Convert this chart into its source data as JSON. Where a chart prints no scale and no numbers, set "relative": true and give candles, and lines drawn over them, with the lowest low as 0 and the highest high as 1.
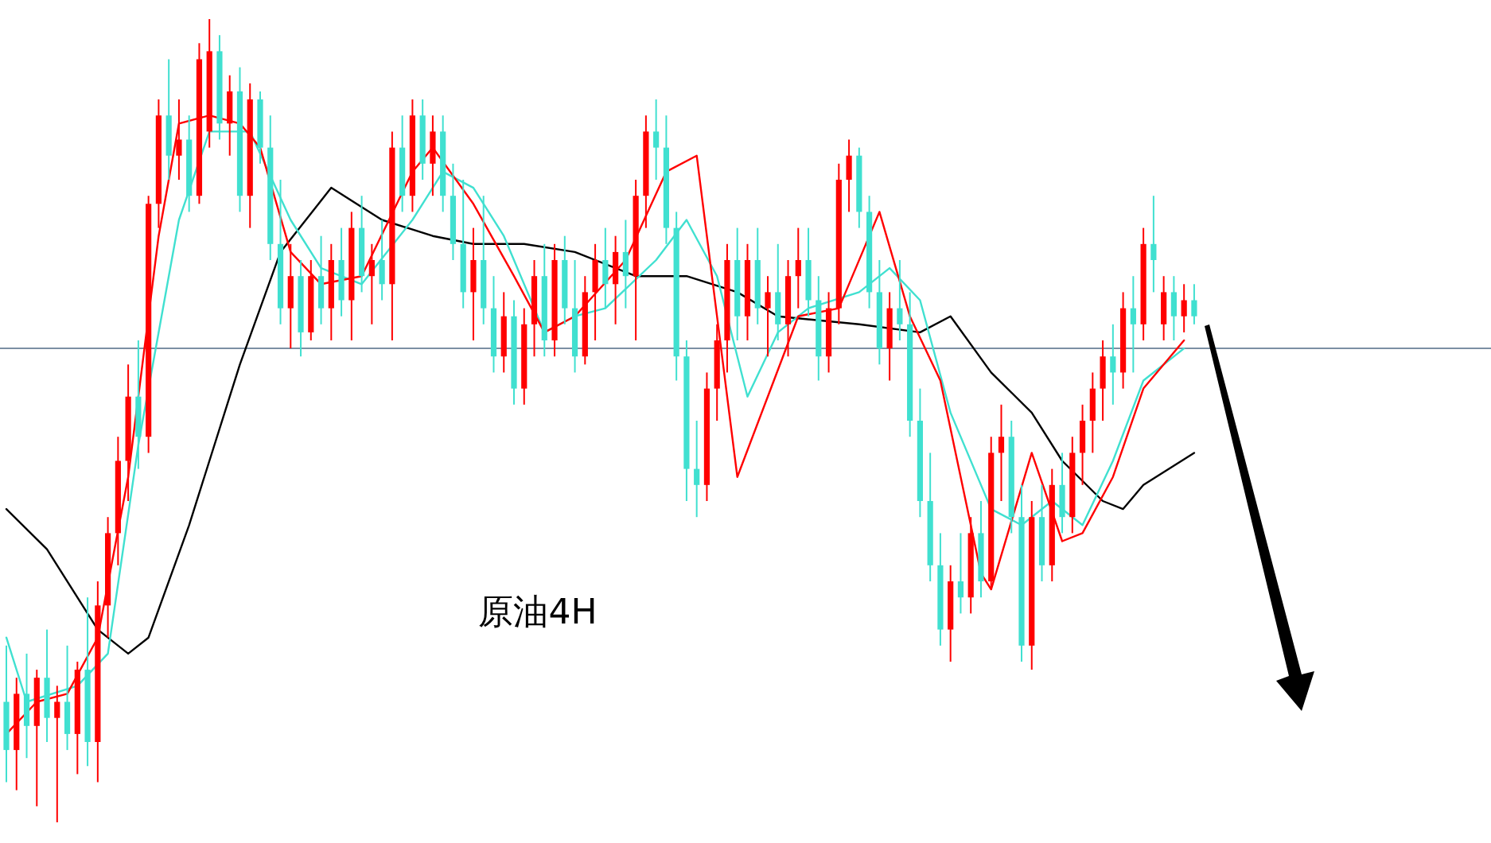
{
  "chart_data": {
    "type": "candlestick",
    "title": "原油4H",
    "relative": true,
    "legend": false,
    "grid": false,
    "categories": [
      null,
      null,
      null,
      null,
      null,
      null,
      null,
      null,
      null,
      null,
      null,
      null,
      null,
      null,
      null,
      null,
      null,
      null,
      null,
      null,
      null,
      null,
      null,
      null,
      null,
      null,
      null,
      null,
      null,
      null,
      null,
      null,
      null,
      null,
      null,
      null,
      null,
      null,
      null,
      null,
      null,
      null,
      null,
      null,
      null,
      null,
      null,
      null,
      null,
      null,
      null,
      null,
      null,
      null,
      null,
      null,
      null,
      null,
      null,
      null,
      null,
      null,
      null,
      null,
      null,
      null,
      null,
      null,
      null,
      null,
      null,
      null,
      null,
      null,
      null,
      null,
      null,
      null,
      null,
      null,
      null,
      null,
      null,
      null,
      null,
      null,
      null,
      null,
      null,
      null,
      null,
      null,
      null,
      null,
      null,
      null,
      null,
      null,
      null,
      null,
      null,
      null,
      null,
      null,
      null,
      null,
      null,
      null,
      null,
      null,
      null,
      null,
      null,
      null,
      null,
      null,
      null,
      null
    ],
    "ohlc": [
      [
        0.15,
        0.22,
        0.05,
        0.09
      ],
      [
        0.09,
        0.18,
        0.04,
        0.16
      ],
      [
        0.16,
        0.21,
        0.08,
        0.12
      ],
      [
        0.12,
        0.19,
        0.02,
        0.18
      ],
      [
        0.18,
        0.24,
        0.1,
        0.13
      ],
      [
        0.13,
        0.17,
        0.0,
        0.15
      ],
      [
        0.15,
        0.22,
        0.09,
        0.11
      ],
      [
        0.11,
        0.2,
        0.06,
        0.19
      ],
      [
        0.19,
        0.28,
        0.07,
        0.1
      ],
      [
        0.1,
        0.3,
        0.05,
        0.27
      ],
      [
        0.27,
        0.38,
        0.23,
        0.36
      ],
      [
        0.36,
        0.48,
        0.32,
        0.45
      ],
      [
        0.45,
        0.57,
        0.4,
        0.53
      ],
      [
        0.53,
        0.6,
        0.44,
        0.48
      ],
      [
        0.48,
        0.78,
        0.46,
        0.77
      ],
      [
        0.77,
        0.9,
        0.74,
        0.88
      ],
      [
        0.88,
        0.95,
        0.8,
        0.83
      ],
      [
        0.83,
        0.9,
        0.8,
        0.85
      ],
      [
        0.85,
        0.88,
        0.76,
        0.78
      ],
      [
        0.78,
        0.97,
        0.77,
        0.95
      ],
      [
        0.86,
        1.0,
        0.84,
        0.96
      ],
      [
        0.96,
        0.98,
        0.85,
        0.87
      ],
      [
        0.87,
        0.93,
        0.83,
        0.91
      ],
      [
        0.91,
        0.94,
        0.76,
        0.78
      ],
      [
        0.78,
        0.92,
        0.74,
        0.9
      ],
      [
        0.9,
        0.91,
        0.82,
        0.84
      ],
      [
        0.84,
        0.88,
        0.7,
        0.72
      ],
      [
        0.72,
        0.8,
        0.62,
        0.64
      ],
      [
        0.64,
        0.72,
        0.59,
        0.68
      ],
      [
        0.68,
        0.7,
        0.58,
        0.61
      ],
      [
        0.61,
        0.7,
        0.6,
        0.68
      ],
      [
        0.68,
        0.73,
        0.62,
        0.64
      ],
      [
        0.64,
        0.72,
        0.6,
        0.7
      ],
      [
        0.7,
        0.74,
        0.63,
        0.65
      ],
      [
        0.65,
        0.76,
        0.6,
        0.74
      ],
      [
        0.74,
        0.78,
        0.66,
        0.68
      ],
      [
        0.68,
        0.72,
        0.62,
        0.7
      ],
      [
        0.7,
        0.75,
        0.65,
        0.67
      ],
      [
        0.67,
        0.86,
        0.6,
        0.84
      ],
      [
        0.84,
        0.88,
        0.76,
        0.78
      ],
      [
        0.78,
        0.9,
        0.76,
        0.88
      ],
      [
        0.88,
        0.9,
        0.8,
        0.82
      ],
      [
        0.82,
        0.88,
        0.78,
        0.86
      ],
      [
        0.86,
        0.88,
        0.76,
        0.78
      ],
      [
        0.78,
        0.82,
        0.7,
        0.72
      ],
      [
        0.72,
        0.8,
        0.64,
        0.66
      ],
      [
        0.66,
        0.74,
        0.6,
        0.7
      ],
      [
        0.7,
        0.78,
        0.62,
        0.64
      ],
      [
        0.64,
        0.68,
        0.56,
        0.58
      ],
      [
        0.58,
        0.66,
        0.56,
        0.63
      ],
      [
        0.63,
        0.65,
        0.52,
        0.54
      ],
      [
        0.54,
        0.64,
        0.52,
        0.62
      ],
      [
        0.62,
        0.7,
        0.58,
        0.68
      ],
      [
        0.68,
        0.72,
        0.58,
        0.6
      ],
      [
        0.6,
        0.72,
        0.58,
        0.7
      ],
      [
        0.7,
        0.73,
        0.62,
        0.64
      ],
      [
        0.64,
        0.7,
        0.56,
        0.58
      ],
      [
        0.58,
        0.68,
        0.57,
        0.66
      ],
      [
        0.66,
        0.72,
        0.6,
        0.7
      ],
      [
        0.7,
        0.74,
        0.64,
        0.67
      ],
      [
        0.67,
        0.73,
        0.62,
        0.71
      ],
      [
        0.71,
        0.75,
        0.64,
        0.68
      ],
      [
        0.68,
        0.8,
        0.6,
        0.78
      ],
      [
        0.78,
        0.88,
        0.74,
        0.86
      ],
      [
        0.86,
        0.9,
        0.8,
        0.84
      ],
      [
        0.84,
        0.88,
        0.72,
        0.74
      ],
      [
        0.74,
        0.76,
        0.55,
        0.58
      ],
      [
        0.58,
        0.6,
        0.4,
        0.44
      ],
      [
        0.44,
        0.5,
        0.38,
        0.42
      ],
      [
        0.42,
        0.56,
        0.4,
        0.54
      ],
      [
        0.54,
        0.62,
        0.5,
        0.6
      ],
      [
        0.6,
        0.72,
        0.56,
        0.7
      ],
      [
        0.7,
        0.74,
        0.6,
        0.63
      ],
      [
        0.63,
        0.72,
        0.6,
        0.7
      ],
      [
        0.7,
        0.74,
        0.62,
        0.64
      ],
      [
        0.64,
        0.68,
        0.58,
        0.66
      ],
      [
        0.66,
        0.72,
        0.6,
        0.62
      ],
      [
        0.62,
        0.7,
        0.58,
        0.68
      ],
      [
        0.68,
        0.74,
        0.64,
        0.7
      ],
      [
        0.7,
        0.74,
        0.63,
        0.65
      ],
      [
        0.65,
        0.68,
        0.55,
        0.58
      ],
      [
        0.58,
        0.66,
        0.56,
        0.64
      ],
      [
        0.64,
        0.82,
        0.62,
        0.8
      ],
      [
        0.8,
        0.85,
        0.76,
        0.83
      ],
      [
        0.83,
        0.84,
        0.74,
        0.76
      ],
      [
        0.76,
        0.78,
        0.64,
        0.66
      ],
      [
        0.66,
        0.7,
        0.57,
        0.59
      ],
      [
        0.59,
        0.66,
        0.55,
        0.64
      ],
      [
        0.64,
        0.7,
        0.6,
        0.62
      ],
      [
        0.62,
        0.66,
        0.48,
        0.5
      ],
      [
        0.5,
        0.54,
        0.38,
        0.4
      ],
      [
        0.4,
        0.46,
        0.3,
        0.32
      ],
      [
        0.32,
        0.36,
        0.22,
        0.24
      ],
      [
        0.24,
        0.32,
        0.2,
        0.3
      ],
      [
        0.3,
        0.36,
        0.26,
        0.28
      ],
      [
        0.28,
        0.38,
        0.26,
        0.36
      ],
      [
        0.36,
        0.4,
        0.28,
        0.3
      ],
      [
        0.3,
        0.48,
        0.29,
        0.46
      ],
      [
        0.46,
        0.52,
        0.4,
        0.48
      ],
      [
        0.48,
        0.5,
        0.36,
        0.38
      ],
      [
        0.38,
        0.42,
        0.2,
        0.22
      ],
      [
        0.22,
        0.4,
        0.19,
        0.38
      ],
      [
        0.38,
        0.42,
        0.3,
        0.32
      ],
      [
        0.32,
        0.44,
        0.3,
        0.42
      ],
      [
        0.42,
        0.46,
        0.36,
        0.38
      ],
      [
        0.38,
        0.48,
        0.36,
        0.46
      ],
      [
        0.46,
        0.52,
        0.42,
        0.5
      ],
      [
        0.5,
        0.56,
        0.46,
        0.54
      ],
      [
        0.54,
        0.6,
        0.5,
        0.58
      ],
      [
        0.58,
        0.62,
        0.52,
        0.56
      ],
      [
        0.56,
        0.66,
        0.54,
        0.64
      ],
      [
        0.64,
        0.68,
        0.56,
        0.62
      ],
      [
        0.62,
        0.74,
        0.6,
        0.72
      ],
      [
        0.72,
        0.78,
        0.66,
        0.7
      ],
      [
        0.62,
        0.68,
        0.6,
        0.66
      ],
      [
        0.66,
        0.68,
        0.6,
        0.63
      ],
      [
        0.63,
        0.67,
        0.61,
        0.65
      ],
      [
        0.65,
        0.67,
        0.62,
        0.63
      ]
    ],
    "colors": [
      "#40e0d0",
      "#ff0000",
      "#40e0d0",
      "#ff0000",
      "#40e0d0",
      "#ff0000",
      "#40e0d0",
      "#ff0000",
      "#40e0d0",
      "#ff0000",
      "#ff0000",
      "#ff0000",
      "#ff0000",
      "#40e0d0",
      "#ff0000",
      "#ff0000",
      "#40e0d0",
      "#ff0000",
      "#40e0d0",
      "#ff0000",
      "#ff0000",
      "#40e0d0",
      "#ff0000",
      "#40e0d0",
      "#ff0000",
      "#40e0d0",
      "#40e0d0",
      "#40e0d0",
      "#ff0000",
      "#40e0d0",
      "#ff0000",
      "#40e0d0",
      "#ff0000",
      "#40e0d0",
      "#ff0000",
      "#40e0d0",
      "#ff0000",
      "#40e0d0",
      "#ff0000",
      "#40e0d0",
      "#ff0000",
      "#40e0d0",
      "#ff0000",
      "#40e0d0",
      "#40e0d0",
      "#40e0d0",
      "#ff0000",
      "#40e0d0",
      "#40e0d0",
      "#ff0000",
      "#40e0d0",
      "#ff0000",
      "#ff0000",
      "#40e0d0",
      "#ff0000",
      "#40e0d0",
      "#40e0d0",
      "#ff0000",
      "#ff0000",
      "#40e0d0",
      "#ff0000",
      "#40e0d0",
      "#ff0000",
      "#ff0000",
      "#40e0d0",
      "#40e0d0",
      "#40e0d0",
      "#40e0d0",
      "#40e0d0",
      "#ff0000",
      "#ff0000",
      "#ff0000",
      "#40e0d0",
      "#ff0000",
      "#40e0d0",
      "#ff0000",
      "#40e0d0",
      "#ff0000",
      "#ff0000",
      "#40e0d0",
      "#40e0d0",
      "#ff0000",
      "#ff0000",
      "#ff0000",
      "#40e0d0",
      "#40e0d0",
      "#40e0d0",
      "#ff0000",
      "#40e0d0",
      "#40e0d0",
      "#40e0d0",
      "#40e0d0",
      "#40e0d0",
      "#ff0000",
      "#40e0d0",
      "#ff0000",
      "#40e0d0",
      "#ff0000",
      "#ff0000",
      "#40e0d0",
      "#40e0d0",
      "#ff0000",
      "#40e0d0",
      "#ff0000",
      "#40e0d0",
      "#ff0000",
      "#ff0000",
      "#ff0000",
      "#ff0000",
      "#40e0d0",
      "#ff0000",
      "#40e0d0",
      "#ff0000",
      "#40e0d0",
      "#ff0000",
      "#40e0d0",
      "#ff0000",
      "#40e0d0"
    ],
    "series": [
      {
        "type": "line",
        "color": "#000000",
        "values": [
          0.39,
          null,
          null,
          null,
          0.34,
          null,
          null,
          null,
          null,
          0.24,
          null,
          null,
          0.21,
          null,
          0.23,
          null,
          null,
          null,
          0.37,
          null,
          null,
          null,
          null,
          0.57,
          null,
          null,
          null,
          0.71,
          null,
          null,
          null,
          null,
          0.79,
          null,
          null,
          null,
          null,
          0.75,
          null,
          null,
          null,
          null,
          0.73,
          null,
          null,
          null,
          0.72,
          null,
          null,
          null,
          null,
          0.72,
          null,
          null,
          null,
          null,
          0.71,
          null,
          null,
          null,
          null,
          null,
          0.68,
          null,
          null,
          null,
          null,
          0.68,
          null,
          null,
          null,
          null,
          0.66,
          null,
          null,
          null,
          0.63,
          null,
          null,
          null,
          null,
          null,
          null,
          null,
          0.62,
          null,
          null,
          null,
          null,
          null,
          0.61,
          null,
          null,
          0.63,
          null,
          null,
          null,
          0.56,
          null,
          null,
          null,
          0.51,
          null,
          null,
          0.45,
          null,
          null,
          null,
          0.4,
          null,
          0.39,
          null,
          0.42,
          null,
          null,
          null,
          null,
          0.46
        ]
      },
      {
        "type": "line",
        "color": "#40e0d0",
        "values": [
          0.23,
          null,
          0.15,
          null,
          null,
          null,
          null,
          0.17,
          null,
          null,
          0.21,
          null,
          null,
          0.47,
          null,
          null,
          null,
          0.75,
          null,
          null,
          0.86,
          null,
          null,
          null,
          0.86,
          null,
          null,
          null,
          0.75,
          null,
          null,
          0.69,
          null,
          null,
          null,
          0.67,
          null,
          null,
          null,
          null,
          0.75,
          null,
          null,
          0.81,
          null,
          null,
          0.79,
          null,
          null,
          0.73,
          null,
          null,
          null,
          0.61,
          null,
          null,
          0.63,
          null,
          null,
          0.64,
          null,
          null,
          null,
          null,
          0.7,
          null,
          null,
          0.75,
          null,
          null,
          0.68,
          null,
          null,
          0.53,
          null,
          null,
          0.61,
          null,
          null,
          0.64,
          null,
          null,
          null,
          null,
          0.66,
          null,
          null,
          0.69,
          null,
          null,
          0.65,
          null,
          null,
          0.51,
          null,
          null,
          null,
          0.39,
          null,
          null,
          0.37,
          null,
          null,
          0.4,
          null,
          null,
          0.37,
          null,
          null,
          0.45,
          null,
          null,
          0.55,
          null,
          null,
          null,
          0.59,
          null
        ]
      },
      {
        "type": "line",
        "color": "#ff0000",
        "values": [
          0.11,
          null,
          null,
          0.15,
          null,
          null,
          0.16,
          null,
          null,
          0.23,
          null,
          null,
          0.43,
          null,
          null,
          0.73,
          null,
          0.87,
          null,
          null,
          0.88,
          null,
          null,
          0.87,
          null,
          0.84,
          null,
          null,
          0.71,
          null,
          null,
          0.67,
          null,
          null,
          null,
          0.68,
          null,
          null,
          null,
          null,
          0.81,
          null,
          0.84,
          null,
          null,
          null,
          0.77,
          null,
          null,
          null,
          0.68,
          null,
          null,
          0.61,
          null,
          null,
          0.63,
          null,
          null,
          null,
          null,
          0.7,
          null,
          null,
          null,
          0.81,
          null,
          null,
          0.83,
          null,
          0.63,
          null,
          0.43,
          null,
          null,
          0.53,
          null,
          null,
          0.63,
          null,
          null,
          null,
          0.64,
          null,
          null,
          null,
          0.76,
          null,
          null,
          0.63,
          null,
          null,
          0.55,
          null,
          null,
          null,
          0.31,
          0.29,
          null,
          null,
          null,
          0.46,
          null,
          null,
          0.35,
          null,
          0.36,
          null,
          null,
          0.43,
          null,
          null,
          0.54,
          null,
          null,
          null,
          0.6,
          null
        ]
      }
    ],
    "ref_lines": [
      {
        "axis": "y",
        "value": 0.59,
        "color": "#7b8fa3"
      }
    ]
  }
}
